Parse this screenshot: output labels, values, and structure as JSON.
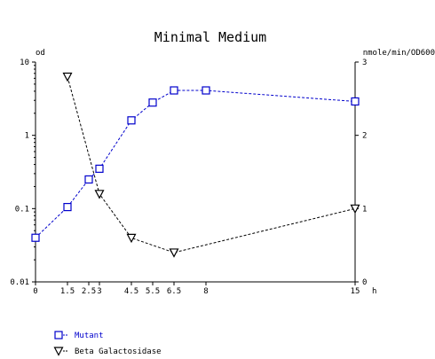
{
  "chart_data": {
    "type": "line",
    "title": "Minimal Medium",
    "xlabel": "h",
    "ylabel_left": "od",
    "ylabel_right": "nmole/min/OD600",
    "xlim": [
      0,
      15
    ],
    "x_ticks": [
      0,
      1.5,
      2.5,
      3,
      4.5,
      5.5,
      6.5,
      8,
      15
    ],
    "x_tick_labels": [
      "0",
      "1.5",
      "2.5",
      "3",
      "4.5",
      "5.5",
      "6.5",
      "8",
      "15"
    ],
    "y_left": {
      "scale": "log",
      "range": [
        0.01,
        10
      ],
      "ticks": [
        0.01,
        0.1,
        1,
        10
      ],
      "tick_labels": [
        "0.01",
        "0.1",
        "1",
        "10"
      ]
    },
    "y_right": {
      "scale": "linear",
      "range": [
        0,
        3
      ],
      "ticks": [
        0,
        1,
        2,
        3
      ],
      "tick_labels": [
        "0",
        "1",
        "2",
        "3"
      ]
    },
    "grid": false,
    "legend_position": "bottom-left",
    "series": [
      {
        "name": "Mutant",
        "axis": "left",
        "color": "#0000cc",
        "marker": "square",
        "x": [
          0,
          1.5,
          2.5,
          3,
          4.5,
          5.5,
          6.5,
          8,
          15
        ],
        "y": [
          0.04,
          0.105,
          0.25,
          0.35,
          1.6,
          2.8,
          4.1,
          4.1,
          2.9
        ]
      },
      {
        "name": "Beta Galactosidase",
        "axis": "right",
        "color": "#000000",
        "marker": "triangle-down",
        "x": [
          1.5,
          3,
          4.5,
          6.5,
          15
        ],
        "y": [
          2.8,
          1.2,
          0.6,
          0.4,
          1.0
        ]
      }
    ]
  }
}
